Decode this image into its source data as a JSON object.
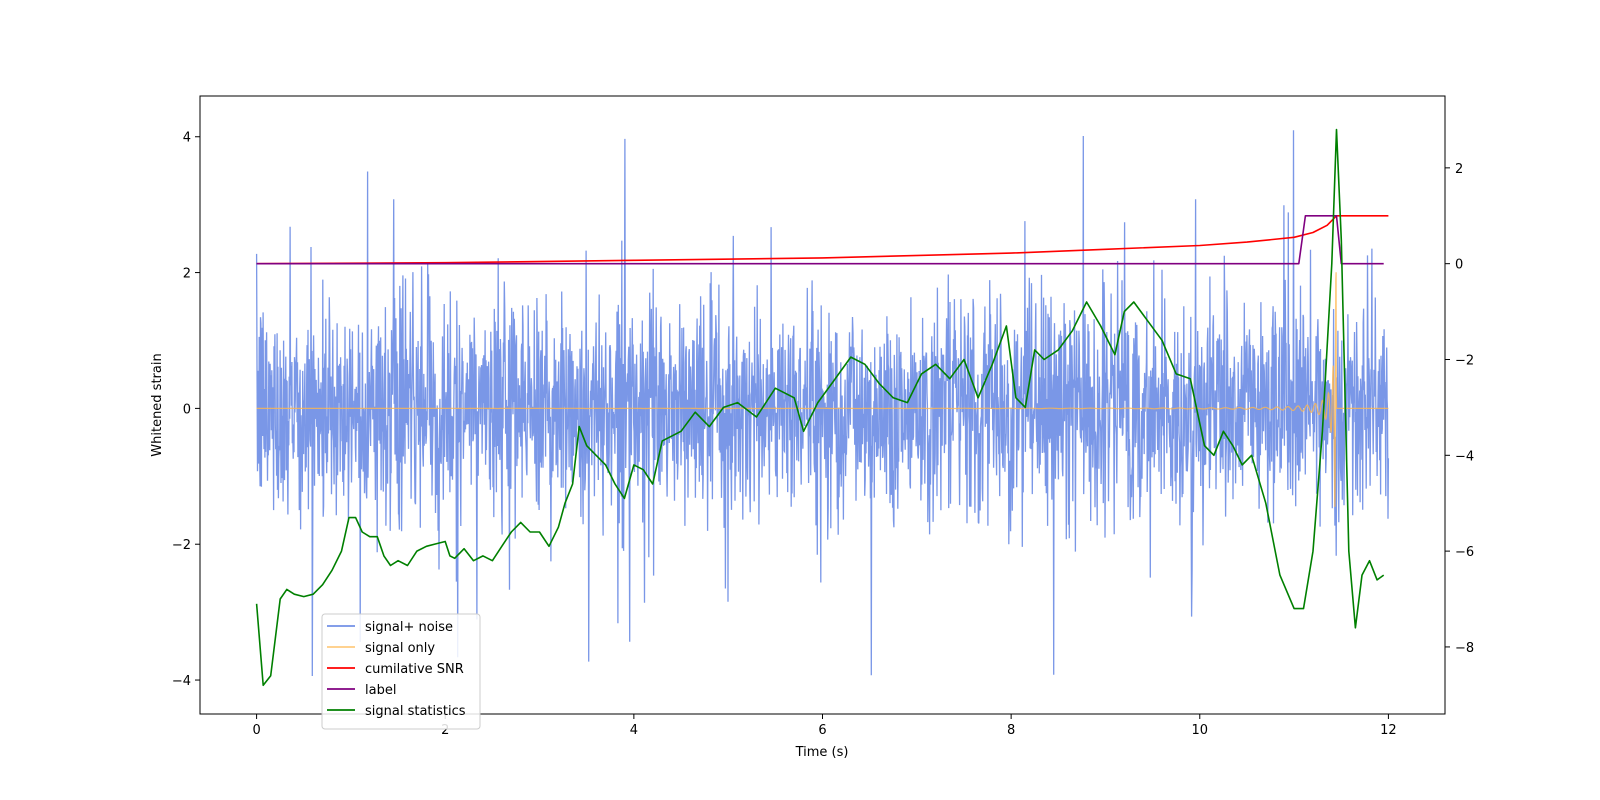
{
  "chart_data": {
    "type": "line",
    "title": "",
    "xlabel": "Time (s)",
    "ylabel": "Whitened strain",
    "xlim": [
      -0.6,
      12.6
    ],
    "ylim_left": [
      -4.5,
      4.6
    ],
    "ylim_right": [
      -9.4,
      3.5
    ],
    "x_ticks": [
      0,
      2,
      4,
      6,
      8,
      10,
      12
    ],
    "y_ticks_left": [
      -4,
      -2,
      0,
      2,
      4
    ],
    "y_ticks_right": [
      -8,
      -6,
      -4,
      -2,
      0,
      2
    ],
    "grid": false,
    "legend_position": "lower-left",
    "legend": [
      {
        "label": "signal+ noise",
        "color": "#7391e6"
      },
      {
        "label": "signal only",
        "color": "#ffcc80"
      },
      {
        "label": "cumilative SNR",
        "color": "#ff0000"
      },
      {
        "label": "label",
        "color": "#800080"
      },
      {
        "label": "signal statistics",
        "color": "#008000"
      }
    ],
    "series": [
      {
        "name": "signal+ noise",
        "axis": "left",
        "color": "#7391e6",
        "description": "broadband noise, roughly -2.5 to 2.5 with spikes up to about 4.2 and down to about -4.1, 0 to 12 s",
        "x_range": [
          0,
          12
        ],
        "typical_band": [
          -2.0,
          2.4
        ],
        "peak": 4.2,
        "trough": -4.1
      },
      {
        "name": "signal only",
        "axis": "left",
        "color": "#ffb74d",
        "description": "chirp oscillating around 0 with growing amplitude, peaking near 11.45 s",
        "x_range": [
          0,
          12
        ],
        "merger_time": 11.45,
        "max_amplitude": 2.2
      },
      {
        "name": "cumilative SNR",
        "axis": "right",
        "color": "#ff0000",
        "x": [
          0,
          2,
          4,
          6,
          8,
          9,
          10,
          10.5,
          11,
          11.2,
          11.35,
          11.45,
          11.5,
          12
        ],
        "y": [
          0.0,
          0.02,
          0.07,
          0.12,
          0.22,
          0.3,
          0.38,
          0.45,
          0.55,
          0.65,
          0.8,
          1.0,
          1.0,
          1.0
        ]
      },
      {
        "name": "label",
        "axis": "right",
        "color": "#800080",
        "x": [
          0,
          11.05,
          11.12,
          11.45,
          11.5,
          11.95
        ],
        "y": [
          0,
          0,
          1,
          1,
          0,
          0
        ]
      },
      {
        "name": "signal statistics",
        "axis": "right",
        "color": "#008000",
        "x": [
          0,
          0.07,
          0.15,
          0.25,
          0.32,
          0.4,
          0.5,
          0.6,
          0.7,
          0.8,
          0.9,
          0.98,
          1.05,
          1.12,
          1.2,
          1.28,
          1.35,
          1.42,
          1.5,
          1.6,
          1.7,
          1.8,
          1.9,
          2.0,
          2.05,
          2.1,
          2.2,
          2.3,
          2.4,
          2.45,
          2.5,
          2.6,
          2.7,
          2.8,
          2.9,
          3.0,
          3.1,
          3.2,
          3.27,
          3.35,
          3.42,
          3.5,
          3.6,
          3.7,
          3.8,
          3.9,
          4.0,
          4.1,
          4.2,
          4.3,
          4.5,
          4.65,
          4.8,
          4.95,
          5.1,
          5.3,
          5.5,
          5.7,
          5.8,
          5.95,
          6.1,
          6.3,
          6.45,
          6.6,
          6.75,
          6.9,
          7.05,
          7.2,
          7.35,
          7.5,
          7.65,
          7.8,
          7.95,
          8.05,
          8.15,
          8.25,
          8.35,
          8.5,
          8.65,
          8.8,
          8.95,
          9.1,
          9.2,
          9.3,
          9.45,
          9.6,
          9.75,
          9.9,
          10.05,
          10.15,
          10.25,
          10.35,
          10.45,
          10.55,
          10.7,
          10.85,
          11.0,
          11.1,
          11.2,
          11.3,
          11.4,
          11.45,
          11.5,
          11.58,
          11.65,
          11.72,
          11.8,
          11.88,
          11.95
        ],
        "y": [
          -7.1,
          -8.8,
          -8.6,
          -7.0,
          -6.8,
          -6.9,
          -6.95,
          -6.9,
          -6.7,
          -6.4,
          -6.0,
          -5.3,
          -5.3,
          -5.6,
          -5.7,
          -5.7,
          -6.1,
          -6.3,
          -6.2,
          -6.3,
          -6.0,
          -5.9,
          -5.85,
          -5.8,
          -6.1,
          -6.15,
          -5.95,
          -6.2,
          -6.1,
          -6.15,
          -6.2,
          -5.9,
          -5.6,
          -5.4,
          -5.6,
          -5.6,
          -5.9,
          -5.5,
          -5.0,
          -4.6,
          -3.4,
          -3.8,
          -4.0,
          -4.2,
          -4.6,
          -4.9,
          -4.2,
          -4.3,
          -4.6,
          -3.7,
          -3.5,
          -3.1,
          -3.4,
          -3.0,
          -2.9,
          -3.2,
          -2.6,
          -2.8,
          -3.5,
          -2.9,
          -2.5,
          -1.95,
          -2.1,
          -2.5,
          -2.8,
          -2.9,
          -2.3,
          -2.1,
          -2.4,
          -2.0,
          -2.8,
          -2.1,
          -1.3,
          -2.8,
          -3.0,
          -1.8,
          -2.0,
          -1.8,
          -1.4,
          -0.8,
          -1.3,
          -1.9,
          -1.0,
          -0.8,
          -1.2,
          -1.6,
          -2.3,
          -2.4,
          -3.8,
          -4.0,
          -3.5,
          -3.8,
          -4.2,
          -4.0,
          -5.0,
          -6.5,
          -7.2,
          -7.2,
          -6.0,
          -3.5,
          0.0,
          2.8,
          0.5,
          -6.0,
          -7.6,
          -6.5,
          -6.2,
          -6.6,
          -6.5
        ]
      }
    ]
  }
}
